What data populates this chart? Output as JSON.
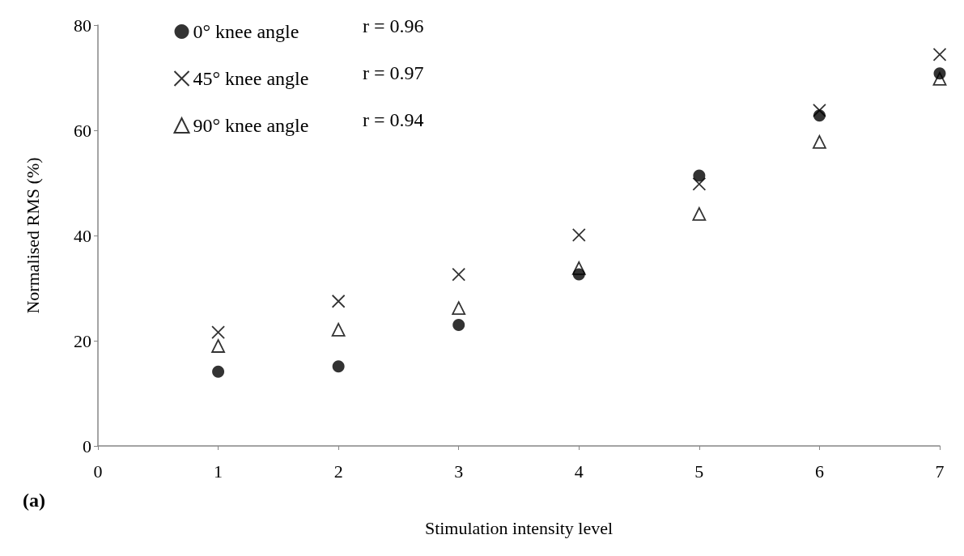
{
  "chart_data": {
    "type": "scatter",
    "xlabel": "Stimulation intensity level",
    "ylabel": "Normalised RMS (%)",
    "x": [
      1,
      2,
      3,
      4,
      5,
      6,
      7
    ],
    "series": [
      {
        "name": "0° knee angle",
        "color": "#000000",
        "marker": "circle",
        "values": [
          14.1,
          15.1,
          23.0,
          32.6,
          51.4,
          62.8,
          70.8
        ]
      },
      {
        "name": "45° knee angle",
        "color": "#000000",
        "marker": "cross",
        "values": [
          21.6,
          27.5,
          32.6,
          40.1,
          49.8,
          63.8,
          74.4
        ]
      },
      {
        "name": "90° knee angle",
        "color": "#000000",
        "marker": "triangle",
        "values": [
          19.0,
          22.1,
          26.2,
          33.8,
          44.1,
          57.8,
          69.8
        ]
      }
    ],
    "annotations": [
      "r = 0.96",
      "r = 0.97",
      "r = 0.94",
      "(a)"
    ],
    "xlim": [
      0,
      7
    ],
    "xticks": [
      0,
      1,
      2,
      3,
      4,
      5,
      6,
      7
    ],
    "ylim": [
      0,
      80
    ],
    "yticks": [
      0,
      20,
      40,
      60,
      80
    ],
    "grid": false,
    "legend": "top left"
  }
}
